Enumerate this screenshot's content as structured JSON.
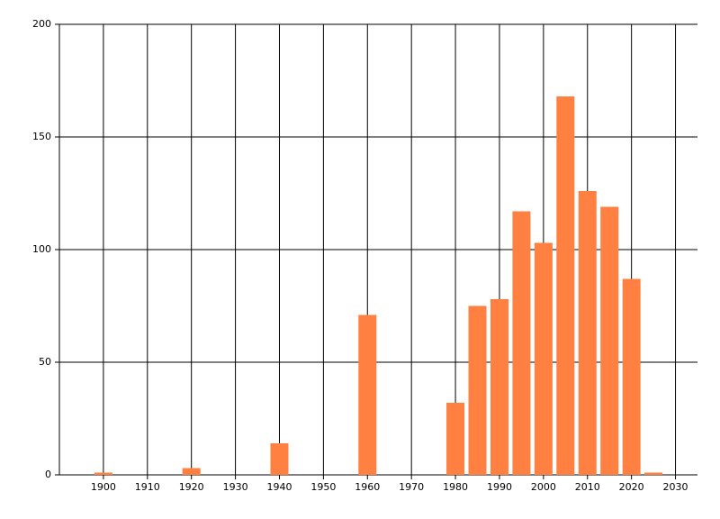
{
  "chart_data": {
    "type": "bar",
    "x": [
      1900,
      1920,
      1940,
      1960,
      1980,
      1985,
      1990,
      1995,
      2000,
      2005,
      2010,
      2015,
      2020,
      2025
    ],
    "values": [
      1,
      3,
      14,
      71,
      32,
      75,
      78,
      117,
      103,
      168,
      126,
      119,
      87,
      1
    ],
    "color": "#ff8040",
    "xlim": [
      1890,
      2035
    ],
    "xticks": [
      1900,
      1910,
      1920,
      1930,
      1940,
      1950,
      1960,
      1970,
      1980,
      1990,
      2000,
      2010,
      2020,
      2030
    ],
    "ylim": [
      0,
      200
    ],
    "yticks": [
      0,
      50,
      100,
      150,
      200
    ],
    "grid": true
  }
}
